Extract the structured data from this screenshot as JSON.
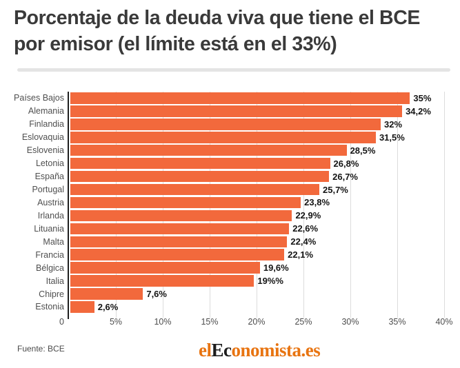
{
  "title": "Porcentaje de la deuda viva que tiene el BCE por emisor (el límite está en el 33%)",
  "source": "Fuente: BCE",
  "logo": {
    "name": "elEconomista.es",
    "parts": [
      {
        "text": "el",
        "color": "#e87411"
      },
      {
        "text": "Ec",
        "color": "#1c1c1c"
      },
      {
        "text": "onomista.es",
        "color": "#e87411"
      }
    ]
  },
  "colors": {
    "bar": "#f2693c",
    "gridline": "#dcdcdc",
    "axis": "#1f1f1f",
    "title_text": "#3a3a3a"
  },
  "chart_data": {
    "type": "bar",
    "orientation": "horizontal",
    "title": "Porcentaje de la deuda viva que tiene el BCE por emisor (el límite está en el 33%)",
    "xlabel": "",
    "ylabel": "",
    "xlim": [
      0,
      40
    ],
    "grid": "vertical",
    "legend": "none",
    "categories": [
      "Países Bajos",
      "Alemania",
      "Finlandia",
      "Eslovaquia",
      "Eslovenia",
      "Letonia",
      "España",
      "Portugal",
      "Austria",
      "Irlanda",
      "Lituania",
      "Malta",
      "Francia",
      "Bélgica",
      "Italia",
      "Chipre",
      "Estonia"
    ],
    "values": [
      35,
      34.2,
      32,
      31.5,
      28.5,
      26.8,
      26.7,
      25.7,
      23.8,
      22.9,
      22.6,
      22.4,
      22.1,
      19.6,
      19,
      7.6,
      2.6
    ],
    "value_labels": [
      "35%",
      "34,2%",
      "32%",
      "31,5%",
      "28,5%",
      "26,8%",
      "26,7%",
      "25,7%",
      "23,8%",
      "22,9%",
      "22,6%",
      "22,4%",
      "22,1%",
      "19,6%",
      "19%%",
      "7,6%",
      "2,6%"
    ],
    "x_ticks": [
      "0",
      "5%",
      "10%",
      "15%",
      "20%",
      "25%",
      "30%",
      "35%",
      "40%"
    ],
    "x_tick_values": [
      0,
      5,
      10,
      15,
      20,
      25,
      30,
      35,
      40
    ]
  }
}
